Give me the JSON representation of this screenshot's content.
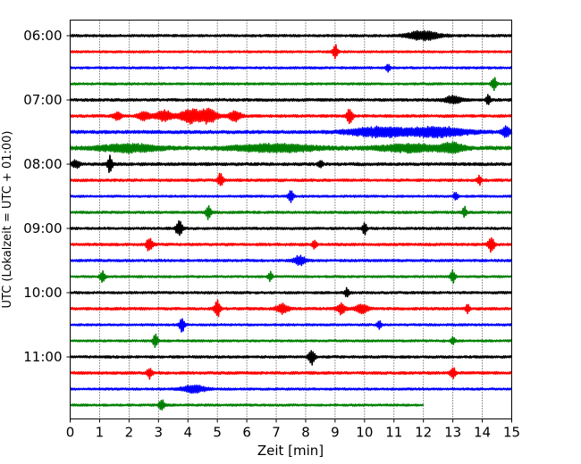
{
  "chart_data": {
    "type": "line",
    "title": "",
    "xlabel": "Zeit  [min]",
    "ylabel": "UTC (Lokalzeit = UTC + 01:00)",
    "xlim": [
      0,
      15
    ],
    "x_ticks": [
      "0",
      "1",
      "2",
      "3",
      "4",
      "5",
      "6",
      "7",
      "8",
      "9",
      "10",
      "11",
      "12",
      "13",
      "14",
      "15"
    ],
    "y_ticks": [
      "06:00",
      "07:00",
      "08:00",
      "09:00",
      "10:00",
      "11:00"
    ],
    "grid": "vertical dotted",
    "trace_colors": [
      "#000000",
      "#ff0000",
      "#0000ff",
      "#008000"
    ],
    "traces": [
      {
        "start": "06:00",
        "end_min": 15,
        "noise": 0.9,
        "events": [
          {
            "t": 12.0,
            "amp": 5,
            "dur": 0.8
          }
        ]
      },
      {
        "start": "06:15",
        "end_min": 15,
        "noise": 0.8,
        "events": [
          {
            "t": 9.0,
            "amp": 8,
            "dur": 0.12
          }
        ]
      },
      {
        "start": "06:30",
        "end_min": 15,
        "noise": 0.8,
        "events": [
          {
            "t": 10.8,
            "amp": 5,
            "dur": 0.1
          }
        ]
      },
      {
        "start": "06:45",
        "end_min": 15,
        "noise": 0.8,
        "events": [
          {
            "t": 14.4,
            "amp": 8,
            "dur": 0.12
          }
        ]
      },
      {
        "start": "07:00",
        "end_min": 15,
        "noise": 1.0,
        "events": [
          {
            "t": 13.0,
            "amp": 4,
            "dur": 0.4
          },
          {
            "t": 14.2,
            "amp": 6,
            "dur": 0.1
          }
        ]
      },
      {
        "start": "07:15",
        "end_min": 15,
        "noise": 1.0,
        "events": [
          {
            "t": 1.6,
            "amp": 4,
            "dur": 0.2
          },
          {
            "t": 2.5,
            "amp": 5,
            "dur": 0.3
          },
          {
            "t": 3.2,
            "amp": 6,
            "dur": 0.4
          },
          {
            "t": 4.1,
            "amp": 8,
            "dur": 0.5
          },
          {
            "t": 4.7,
            "amp": 8,
            "dur": 0.4
          },
          {
            "t": 5.6,
            "amp": 6,
            "dur": 0.3
          },
          {
            "t": 9.5,
            "amp": 8,
            "dur": 0.15
          }
        ]
      },
      {
        "start": "07:30",
        "end_min": 15,
        "noise": 1.2,
        "events": [
          {
            "t": 10.5,
            "amp": 5,
            "dur": 1.5
          },
          {
            "t": 12.5,
            "amp": 5,
            "dur": 1.5
          },
          {
            "t": 14.8,
            "amp": 6,
            "dur": 0.2
          }
        ]
      },
      {
        "start": "07:45",
        "end_min": 15,
        "noise": 1.4,
        "events": [
          {
            "t": 2.0,
            "amp": 4,
            "dur": 1.5
          },
          {
            "t": 7.0,
            "amp": 4,
            "dur": 2.0
          },
          {
            "t": 11.5,
            "amp": 4,
            "dur": 1.5
          },
          {
            "t": 13.0,
            "amp": 5,
            "dur": 0.6
          }
        ]
      },
      {
        "start": "08:00",
        "end_min": 15,
        "noise": 1.1,
        "events": [
          {
            "t": 0.2,
            "amp": 4,
            "dur": 0.2
          },
          {
            "t": 1.35,
            "amp": 9,
            "dur": 0.12
          },
          {
            "t": 8.5,
            "amp": 5,
            "dur": 0.1
          }
        ]
      },
      {
        "start": "08:15",
        "end_min": 15,
        "noise": 1.0,
        "events": [
          {
            "t": 5.1,
            "amp": 8,
            "dur": 0.12
          },
          {
            "t": 13.9,
            "amp": 5,
            "dur": 0.1
          }
        ]
      },
      {
        "start": "08:30",
        "end_min": 15,
        "noise": 0.8,
        "events": [
          {
            "t": 7.5,
            "amp": 8,
            "dur": 0.12
          },
          {
            "t": 13.1,
            "amp": 5,
            "dur": 0.1
          }
        ]
      },
      {
        "start": "08:45",
        "end_min": 15,
        "noise": 0.9,
        "events": [
          {
            "t": 4.7,
            "amp": 8,
            "dur": 0.12
          },
          {
            "t": 13.4,
            "amp": 6,
            "dur": 0.1
          }
        ]
      },
      {
        "start": "09:00",
        "end_min": 15,
        "noise": 0.9,
        "events": [
          {
            "t": 3.7,
            "amp": 9,
            "dur": 0.15
          },
          {
            "t": 10.0,
            "amp": 7,
            "dur": 0.1
          }
        ]
      },
      {
        "start": "09:15",
        "end_min": 15,
        "noise": 1.0,
        "events": [
          {
            "t": 2.7,
            "amp": 8,
            "dur": 0.15
          },
          {
            "t": 8.3,
            "amp": 5,
            "dur": 0.1
          },
          {
            "t": 14.3,
            "amp": 8,
            "dur": 0.15
          }
        ]
      },
      {
        "start": "09:30",
        "end_min": 15,
        "noise": 0.9,
        "events": [
          {
            "t": 7.8,
            "amp": 5,
            "dur": 0.3
          }
        ]
      },
      {
        "start": "09:45",
        "end_min": 15,
        "noise": 0.8,
        "events": [
          {
            "t": 1.1,
            "amp": 7,
            "dur": 0.12
          },
          {
            "t": 6.8,
            "amp": 5,
            "dur": 0.1
          },
          {
            "t": 13.0,
            "amp": 7,
            "dur": 0.12
          }
        ]
      },
      {
        "start": "10:00",
        "end_min": 15,
        "noise": 0.9,
        "events": [
          {
            "t": 9.4,
            "amp": 5,
            "dur": 0.1
          }
        ]
      },
      {
        "start": "10:15",
        "end_min": 15,
        "noise": 1.0,
        "events": [
          {
            "t": 5.0,
            "amp": 9,
            "dur": 0.15
          },
          {
            "t": 7.2,
            "amp": 5,
            "dur": 0.3
          },
          {
            "t": 9.2,
            "amp": 6,
            "dur": 0.2
          },
          {
            "t": 9.9,
            "amp": 5,
            "dur": 0.3
          },
          {
            "t": 13.5,
            "amp": 5,
            "dur": 0.1
          }
        ]
      },
      {
        "start": "10:30",
        "end_min": 15,
        "noise": 0.8,
        "events": [
          {
            "t": 3.8,
            "amp": 8,
            "dur": 0.12
          },
          {
            "t": 10.5,
            "amp": 5,
            "dur": 0.1
          }
        ]
      },
      {
        "start": "10:45",
        "end_min": 15,
        "noise": 0.8,
        "events": [
          {
            "t": 2.9,
            "amp": 7,
            "dur": 0.12
          },
          {
            "t": 13.0,
            "amp": 5,
            "dur": 0.1
          }
        ]
      },
      {
        "start": "11:00",
        "end_min": 15,
        "noise": 0.9,
        "events": [
          {
            "t": 8.2,
            "amp": 9,
            "dur": 0.15
          }
        ]
      },
      {
        "start": "11:15",
        "end_min": 15,
        "noise": 1.0,
        "events": [
          {
            "t": 2.7,
            "amp": 6,
            "dur": 0.12
          },
          {
            "t": 13.0,
            "amp": 7,
            "dur": 0.12
          }
        ]
      },
      {
        "start": "11:30",
        "end_min": 15,
        "noise": 0.8,
        "events": [
          {
            "t": 4.2,
            "amp": 4,
            "dur": 0.6
          }
        ]
      },
      {
        "start": "11:45",
        "end_min": 12,
        "noise": 0.8,
        "events": [
          {
            "t": 3.1,
            "amp": 7,
            "dur": 0.12
          }
        ]
      }
    ]
  }
}
